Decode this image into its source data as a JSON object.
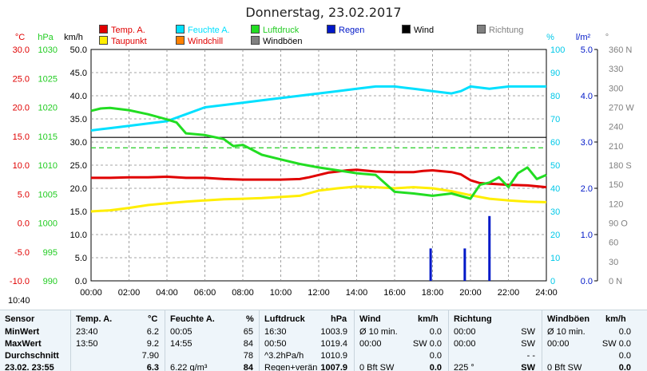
{
  "title": "Donnerstag, 23.02.2017",
  "time_label": "10:40",
  "legend": [
    {
      "label": "Temp. A.",
      "color": "#e00000",
      "text_color": "#e00000"
    },
    {
      "label": "Feuchte A.",
      "color": "#00e0ff",
      "text_color": "#00e0ff"
    },
    {
      "label": "Luftdruck",
      "color": "#22dd22",
      "text_color": "#22cc22"
    },
    {
      "label": "Regen",
      "color": "#0018c8",
      "text_color": "#0018c8"
    },
    {
      "label": "Wind",
      "color": "#000000",
      "text_color": "#000000"
    },
    {
      "label": "Richtung",
      "color": "#808080",
      "text_color": "#808080"
    },
    {
      "label": "Taupunkt",
      "color": "#ffee00",
      "text_color": "#e00000"
    },
    {
      "label": "Windchill",
      "color": "#ff8000",
      "text_color": "#e00000"
    },
    {
      "label": "Windböen",
      "color": "#808080",
      "text_color": "#000000"
    }
  ],
  "chart_data": {
    "type": "line",
    "x_label_unit": "h",
    "xlim": [
      0,
      24
    ],
    "x_ticks": [
      "00:00",
      "02:00",
      "04:00",
      "06:00",
      "08:00",
      "10:00",
      "12:00",
      "14:00",
      "16:00",
      "18:00",
      "20:00",
      "22:00",
      "24:00"
    ],
    "axes": {
      "temp": {
        "unit": "°C",
        "color": "#e00000",
        "range": [
          -10,
          30
        ],
        "ticks": [
          "30.0",
          "25.0",
          "20.0",
          "15.0",
          "10.0",
          "5.0",
          "0.0",
          "-5.0",
          "-10.0"
        ]
      },
      "pressure": {
        "unit": "hPa",
        "color": "#22cc22",
        "range": [
          990,
          1030
        ],
        "ticks": [
          "1030",
          "1025",
          "1020",
          "1015",
          "1010",
          "1005",
          "1000",
          "995",
          "990"
        ]
      },
      "wind": {
        "unit": "km/h",
        "color": "#000000",
        "range": [
          0,
          50
        ],
        "ticks": [
          "50.0",
          "45.0",
          "40.0",
          "35.0",
          "30.0",
          "25.0",
          "20.0",
          "15.0",
          "10.0",
          "5.0",
          "0.0"
        ]
      },
      "humidity": {
        "unit": "%",
        "color": "#00c8e8",
        "range": [
          0,
          100
        ],
        "ticks": [
          "100",
          "90",
          "80",
          "70",
          "60",
          "50",
          "40",
          "30",
          "20",
          "10",
          "0"
        ]
      },
      "rain": {
        "unit": "l/m²",
        "color": "#0018c8",
        "range": [
          0,
          5
        ],
        "ticks": [
          "5.0",
          "4.0",
          "3.0",
          "2.0",
          "1.0",
          "0.0"
        ]
      },
      "direction": {
        "unit": "°",
        "color": "#808080",
        "range": [
          0,
          360
        ],
        "ticks": [
          "360 N",
          "330",
          "300",
          "270 W",
          "240",
          "210",
          "180 S",
          "150",
          "120",
          "90 O",
          "60",
          "30",
          "0 N"
        ]
      }
    },
    "series": [
      {
        "name": "Temp. A.",
        "axis": "temp",
        "color": "#e00000",
        "x": [
          0,
          1,
          2,
          3,
          4,
          5,
          6,
          7,
          8,
          9,
          10,
          11,
          11.5,
          12,
          12.5,
          13,
          13.5,
          14,
          15,
          16,
          17,
          17.5,
          18,
          19,
          19.5,
          20,
          20.5,
          21,
          22,
          23,
          24
        ],
        "y": [
          7.8,
          7.8,
          7.9,
          7.9,
          8.0,
          7.8,
          7.8,
          7.6,
          7.5,
          7.5,
          7.5,
          7.6,
          7.9,
          8.3,
          8.7,
          8.9,
          9.1,
          9.2,
          8.9,
          8.8,
          8.8,
          9.0,
          9.1,
          8.8,
          8.4,
          7.4,
          6.9,
          6.8,
          6.6,
          6.5,
          6.2
        ]
      },
      {
        "name": "Taupunkt",
        "axis": "temp",
        "color": "#ffee00",
        "x": [
          0,
          1,
          2,
          3,
          4,
          5,
          6,
          7,
          8,
          9,
          10,
          11,
          12,
          13,
          14,
          15,
          16,
          17,
          18,
          19,
          20,
          21,
          22,
          23,
          24
        ],
        "y": [
          2.0,
          2.2,
          2.6,
          3.1,
          3.4,
          3.7,
          3.9,
          4.1,
          4.2,
          4.3,
          4.5,
          4.7,
          5.6,
          6.0,
          6.3,
          6.2,
          6.0,
          6.2,
          6.0,
          5.5,
          4.8,
          4.2,
          3.9,
          3.7,
          3.6
        ]
      },
      {
        "name": "Feuchte A.",
        "axis": "humidity",
        "color": "#00e0ff",
        "x": [
          0,
          1,
          2,
          3,
          4,
          5,
          6,
          7,
          8,
          9,
          10,
          11,
          12,
          13,
          14,
          15,
          16,
          17,
          18,
          19,
          19.5,
          20,
          21,
          22,
          23,
          24
        ],
        "y": [
          65,
          66,
          67,
          68,
          69,
          72,
          75,
          76,
          77,
          78,
          79,
          80,
          81,
          82,
          83,
          84,
          84,
          83,
          82,
          81,
          82,
          84,
          83,
          84,
          84,
          84
        ]
      },
      {
        "name": "Luftdruck",
        "axis": "pressure",
        "color": "#22dd22",
        "x": [
          0,
          0.5,
          1,
          2,
          3,
          4,
          4.5,
          5,
          6,
          7,
          7.5,
          8,
          9,
          10,
          11,
          12,
          13,
          14,
          15,
          16,
          17,
          18,
          19,
          20,
          20.5,
          21,
          21.5,
          22,
          22.5,
          23,
          23.5,
          24
        ],
        "y": [
          1019.4,
          1019.8,
          1019.9,
          1019.5,
          1018.8,
          1017.9,
          1017.4,
          1015.5,
          1015.2,
          1014.5,
          1013.3,
          1013.5,
          1011.8,
          1011.0,
          1010.2,
          1009.6,
          1009.1,
          1008.6,
          1008.3,
          1005.4,
          1005.1,
          1004.7,
          1005.1,
          1004.2,
          1006.6,
          1007.0,
          1007.9,
          1006.2,
          1008.6,
          1009.6,
          1007.6,
          1008.3
        ]
      },
      {
        "name": "Regen",
        "axis": "rain",
        "color": "#0018c8",
        "type": "bar",
        "x": [
          17.9,
          19.7,
          21.0
        ],
        "y": [
          0.7,
          0.7,
          1.4
        ]
      }
    ],
    "reference_lines": [
      {
        "axis": "temp",
        "value": 13.0,
        "color": "#22cc22",
        "style": "dashed"
      },
      {
        "axis": "temp",
        "value": 14.8,
        "color": "#000000",
        "style": "solid"
      }
    ],
    "grid": true
  },
  "stats": {
    "headers": {
      "sensor": "Sensor",
      "temp": "Temp. A.",
      "temp_unit": "°C",
      "hum": "Feuchte A.",
      "hum_unit": "%",
      "press": "Luftdruck",
      "press_unit": "hPa",
      "wind": "Wind",
      "wind_unit": "km/h",
      "dir": "Richtung",
      "gust": "Windböen",
      "gust_unit": "km/h"
    },
    "rows": [
      {
        "label": "MinWert",
        "temp_time": "23:40",
        "temp_val": "6.2",
        "hum_time": "00:05",
        "hum_val": "65",
        "press_time": "16:30",
        "press_val": "1003.9",
        "wind_time": "Ø 10 min.",
        "wind_val": "0.0",
        "dir_time": "00:00",
        "dir_val": "SW",
        "gust_time": "Ø 10 min.",
        "gust_val": "0.0"
      },
      {
        "label": "MaxWert",
        "temp_time": "13:50",
        "temp_val": "9.2",
        "hum_time": "14:55",
        "hum_val": "84",
        "press_time": "00:50",
        "press_val": "1019.4",
        "wind_time": "00:00",
        "wind_val": "SW 0.0",
        "dir_time": "00:00",
        "dir_val": "SW",
        "gust_time": "00:00",
        "gust_val": "SW 0.0"
      },
      {
        "label": "Durchschnitt",
        "temp_time": "",
        "temp_val": "7.90",
        "hum_time": "",
        "hum_val": "78",
        "press_time": "^3.2hPa/h",
        "press_val": "1010.9",
        "wind_time": "",
        "wind_val": "0.0",
        "dir_time": "",
        "dir_val": "- -",
        "gust_time": "",
        "gust_val": "0.0"
      },
      {
        "label": "23.02. 23:55",
        "temp_time": "",
        "temp_val": "6.3",
        "hum_time": "6.22 g/m³",
        "hum_val": "84",
        "press_time": "Regen+verän",
        "press_val": "1007.9",
        "wind_time": "0 Bft SW",
        "wind_val": "0.0",
        "dir_time": "225 °",
        "dir_val": "SW",
        "gust_time": "0 Bft SW",
        "gust_val": "0.0"
      }
    ]
  }
}
